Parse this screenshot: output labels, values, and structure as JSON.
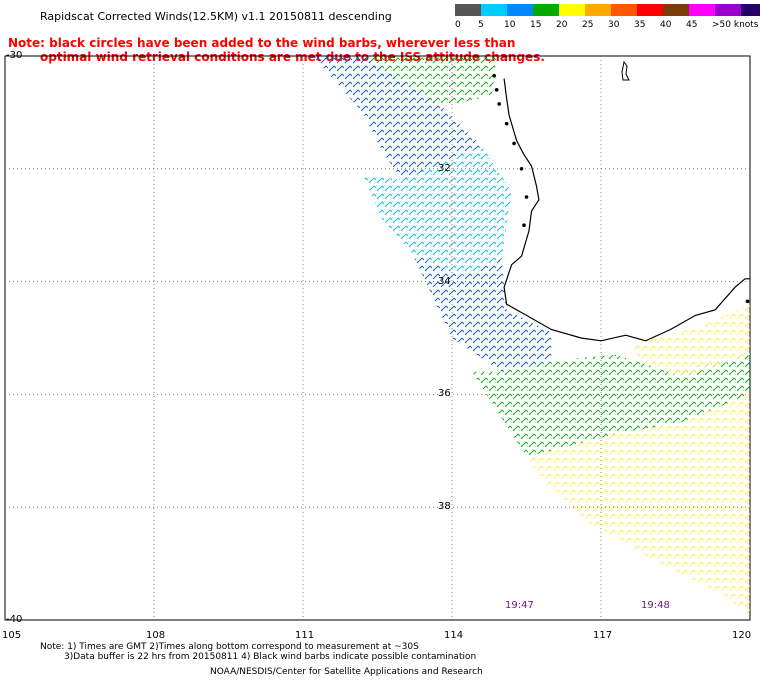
{
  "title": "Rapidscat Corrected Winds(12.5KM) v1.1 20150811 descending",
  "note_line1": "Note: black circles have been added to the wind barbs, wherever less than",
  "note_line2": "optimal wind retrieval conditions are met due to the ISS attitude changes.",
  "speed_scale": {
    "colors": [
      "#555555",
      "#00ccff",
      "#0088ff",
      "#00aa00",
      "#ffff00",
      "#ffaa00",
      "#ff5500",
      "#ff0000",
      "#7a3b0a",
      "#ff00ff",
      "#9900cc",
      "#220066"
    ],
    "labels": [
      "0",
      "5",
      "10",
      "15",
      "20",
      "25",
      "30",
      "35",
      "40",
      "45",
      ">50 knots"
    ]
  },
  "latitude_labels": [
    "-30",
    "32",
    "34",
    "36",
    "38",
    "-40"
  ],
  "longitude_labels": [
    "105",
    "108",
    "111",
    "114",
    "117",
    "120"
  ],
  "time_labels": [
    "19:47",
    "19:48"
  ],
  "footer": {
    "line1": "Note: 1) Times are GMT 2)Times along bottom correspond to measurement at ~30S",
    "line2": "3)Data buffer is 22 hrs from 20150811 4) Black wind barbs indicate possible contamination",
    "line3": "NOAA/NESDIS/Center for Satellite Applications and Research"
  },
  "map_data": {
    "lat_range": [
      -40,
      -30
    ],
    "lon_range": [
      105,
      120
    ],
    "coastline": [
      [
        115.05,
        -30.4
      ],
      [
        115.1,
        -30.75
      ],
      [
        115.15,
        -31.05
      ],
      [
        115.3,
        -31.5
      ],
      [
        115.45,
        -31.75
      ],
      [
        115.6,
        -31.95
      ],
      [
        115.7,
        -32.3
      ],
      [
        115.75,
        -32.55
      ],
      [
        115.6,
        -32.75
      ],
      [
        115.55,
        -33.1
      ],
      [
        115.4,
        -33.55
      ],
      [
        115.2,
        -33.7
      ],
      [
        115.05,
        -34.1
      ],
      [
        115.1,
        -34.4
      ],
      [
        115.5,
        -34.6
      ],
      [
        116.0,
        -34.85
      ],
      [
        116.6,
        -35.0
      ],
      [
        117.0,
        -35.05
      ],
      [
        117.5,
        -34.95
      ],
      [
        117.9,
        -35.05
      ],
      [
        118.4,
        -34.85
      ],
      [
        118.9,
        -34.6
      ],
      [
        119.3,
        -34.5
      ],
      [
        119.7,
        -34.1
      ],
      [
        119.9,
        -33.95
      ],
      [
        120.0,
        -33.95
      ]
    ],
    "swath_regions": [
      {
        "speed_class": "15-20",
        "color": "#00aa00",
        "polygon": [
          [
            114.4,
            -30.0
          ],
          [
            114.9,
            -30.0
          ],
          [
            114.8,
            -30.7
          ],
          [
            113.8,
            -30.9
          ],
          [
            112.6,
            -30.4
          ],
          [
            112.2,
            -30.0
          ]
        ]
      },
      {
        "speed_class": "10-15",
        "color": "#0055dd",
        "polygon": [
          [
            111.2,
            -30.0
          ],
          [
            112.2,
            -30.0
          ],
          [
            113.8,
            -30.9
          ],
          [
            114.6,
            -31.6
          ],
          [
            113.0,
            -32.2
          ],
          [
            112.6,
            -31.7
          ],
          [
            112.2,
            -31.0
          ]
        ]
      },
      {
        "speed_class": "5-10",
        "color": "#00bbee",
        "polygon": [
          [
            112.2,
            -32.1
          ],
          [
            113.0,
            -32.2
          ],
          [
            114.6,
            -31.6
          ],
          [
            115.2,
            -32.4
          ],
          [
            115.0,
            -33.6
          ],
          [
            114.2,
            -33.9
          ],
          [
            113.2,
            -33.5
          ],
          [
            112.6,
            -32.9
          ]
        ]
      },
      {
        "speed_class": "10-15",
        "color": "#0055dd",
        "polygon": [
          [
            113.2,
            -33.5
          ],
          [
            114.2,
            -33.9
          ],
          [
            115.0,
            -33.6
          ],
          [
            115.1,
            -34.5
          ],
          [
            116.0,
            -34.9
          ],
          [
            116.0,
            -35.4
          ],
          [
            115.0,
            -35.6
          ],
          [
            114.0,
            -35.0
          ]
        ]
      },
      {
        "speed_class": "15-20",
        "color": "#00aa00",
        "polygon": [
          [
            114.4,
            -35.6
          ],
          [
            115.0,
            -35.6
          ],
          [
            116.0,
            -35.4
          ],
          [
            117.3,
            -35.3
          ],
          [
            118.4,
            -35.6
          ],
          [
            120.0,
            -35.3
          ],
          [
            120.0,
            -36.0
          ],
          [
            118.6,
            -36.5
          ],
          [
            117.3,
            -36.7
          ],
          [
            116.0,
            -37.0
          ],
          [
            115.5,
            -37.1
          ]
        ]
      },
      {
        "speed_class": "20-25",
        "color": "#ffee44",
        "polygon": [
          [
            117.6,
            -35.1
          ],
          [
            119.0,
            -34.8
          ],
          [
            120.0,
            -34.4
          ],
          [
            120.0,
            -35.3
          ],
          [
            118.6,
            -35.7
          ],
          [
            117.8,
            -35.4
          ]
        ]
      },
      {
        "speed_class": "20-25",
        "color": "#ffee44",
        "polygon": [
          [
            115.5,
            -37.1
          ],
          [
            116.0,
            -37.0
          ],
          [
            117.3,
            -36.7
          ],
          [
            118.6,
            -36.5
          ],
          [
            120.0,
            -36.0
          ],
          [
            120.0,
            -39.9
          ],
          [
            119.5,
            -39.6
          ],
          [
            118.0,
            -38.9
          ],
          [
            116.8,
            -38.3
          ],
          [
            115.9,
            -37.6
          ]
        ]
      }
    ],
    "contamination_points": [
      [
        114.85,
        -30.35
      ],
      [
        114.9,
        -30.6
      ],
      [
        114.95,
        -30.85
      ],
      [
        115.1,
        -31.2
      ],
      [
        115.25,
        -31.55
      ],
      [
        115.4,
        -32.0
      ],
      [
        115.5,
        -32.5
      ],
      [
        115.45,
        -33.0
      ],
      [
        119.95,
        -34.35
      ]
    ]
  }
}
